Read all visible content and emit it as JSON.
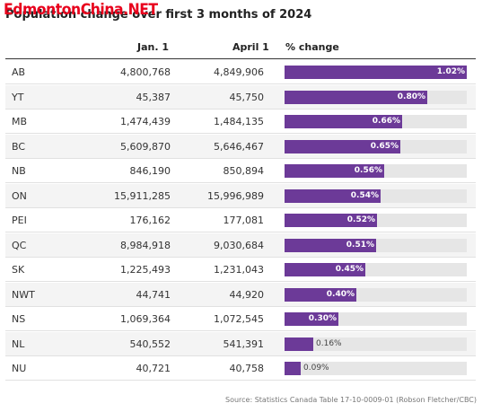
{
  "watermark": "EdmontonChina.NET",
  "title": "Population change over first 3 months of 2024",
  "columns": {
    "province": "",
    "jan": "Jan. 1",
    "april": "April 1",
    "change": "% change"
  },
  "source": "Source: Statistics Canada Table 17-10-0009-01 (Robson Fletcher/CBC)",
  "colors": {
    "bar": "#6c3a98",
    "track": "#e6e6e6",
    "alt_row": "#f4f4f4",
    "watermark": "#e8001c"
  },
  "chart_data": {
    "type": "table",
    "title": "Population change over first 3 months of 2024",
    "bar_max": 1.02,
    "rows": [
      {
        "province": "AB",
        "jan": "4,800,768",
        "april": "4,849,906",
        "change": 1.02,
        "change_label": "1.02%"
      },
      {
        "province": "YT",
        "jan": "45,387",
        "april": "45,750",
        "change": 0.8,
        "change_label": "0.80%"
      },
      {
        "province": "MB",
        "jan": "1,474,439",
        "april": "1,484,135",
        "change": 0.66,
        "change_label": "0.66%"
      },
      {
        "province": "BC",
        "jan": "5,609,870",
        "april": "5,646,467",
        "change": 0.65,
        "change_label": "0.65%"
      },
      {
        "province": "NB",
        "jan": "846,190",
        "april": "850,894",
        "change": 0.56,
        "change_label": "0.56%"
      },
      {
        "province": "ON",
        "jan": "15,911,285",
        "april": "15,996,989",
        "change": 0.54,
        "change_label": "0.54%"
      },
      {
        "province": "PEI",
        "jan": "176,162",
        "april": "177,081",
        "change": 0.52,
        "change_label": "0.52%"
      },
      {
        "province": "QC",
        "jan": "8,984,918",
        "april": "9,030,684",
        "change": 0.51,
        "change_label": "0.51%"
      },
      {
        "province": "SK",
        "jan": "1,225,493",
        "april": "1,231,043",
        "change": 0.45,
        "change_label": "0.45%"
      },
      {
        "province": "NWT",
        "jan": "44,741",
        "april": "44,920",
        "change": 0.4,
        "change_label": "0.40%"
      },
      {
        "province": "NS",
        "jan": "1,069,364",
        "april": "1,072,545",
        "change": 0.3,
        "change_label": "0.30%"
      },
      {
        "province": "NL",
        "jan": "540,552",
        "april": "541,391",
        "change": 0.16,
        "change_label": "0.16%"
      },
      {
        "province": "NU",
        "jan": "40,721",
        "april": "40,758",
        "change": 0.09,
        "change_label": "0.09%"
      }
    ]
  }
}
